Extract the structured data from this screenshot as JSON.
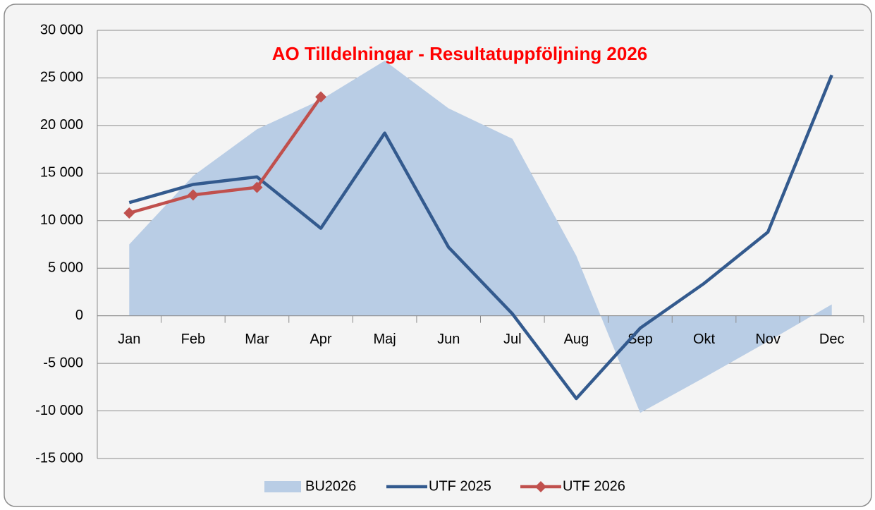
{
  "chart_data": {
    "type": "line",
    "title": "AO Tilldelningar - Resultatuppföljning  2026",
    "categories": [
      "Jan",
      "Feb",
      "Mar",
      "Apr",
      "Maj",
      "Jun",
      "Jul",
      "Aug",
      "Sep",
      "Okt",
      "Nov",
      "Dec"
    ],
    "series": [
      {
        "name": "BU2026",
        "type": "area",
        "color": "#b9cde5",
        "values": [
          7500,
          14700,
          19600,
          22700,
          26800,
          21800,
          18600,
          6300,
          -10200,
          -6500,
          -2700,
          1200
        ]
      },
      {
        "name": "UTF 2025",
        "type": "line",
        "color": "#335a8e",
        "values": [
          11900,
          13800,
          14600,
          9200,
          19200,
          7200,
          200,
          -8700,
          -1300,
          3400,
          8800,
          25300
        ]
      },
      {
        "name": "UTF 2026",
        "type": "line",
        "color": "#c0504d",
        "marker": "diamond",
        "values": [
          10800,
          12700,
          13500,
          23000,
          null,
          null,
          null,
          null,
          null,
          null,
          null,
          null
        ]
      }
    ],
    "ylim": [
      -15000,
      30000
    ],
    "yticks": [
      {
        "value": -15000,
        "label": "-15 000"
      },
      {
        "value": -10000,
        "label": "-10 000"
      },
      {
        "value": -5000,
        "label": "-5 000"
      },
      0,
      {
        "value": 5000,
        "label": "5 000"
      },
      {
        "value": 10000,
        "label": "10 000"
      },
      {
        "value": 15000,
        "label": "15 000"
      },
      {
        "value": 20000,
        "label": "20 000"
      },
      {
        "value": 25000,
        "label": "25 000"
      },
      {
        "value": 30000,
        "label": "30 000"
      }
    ],
    "grid": true,
    "legend": "bottom"
  }
}
